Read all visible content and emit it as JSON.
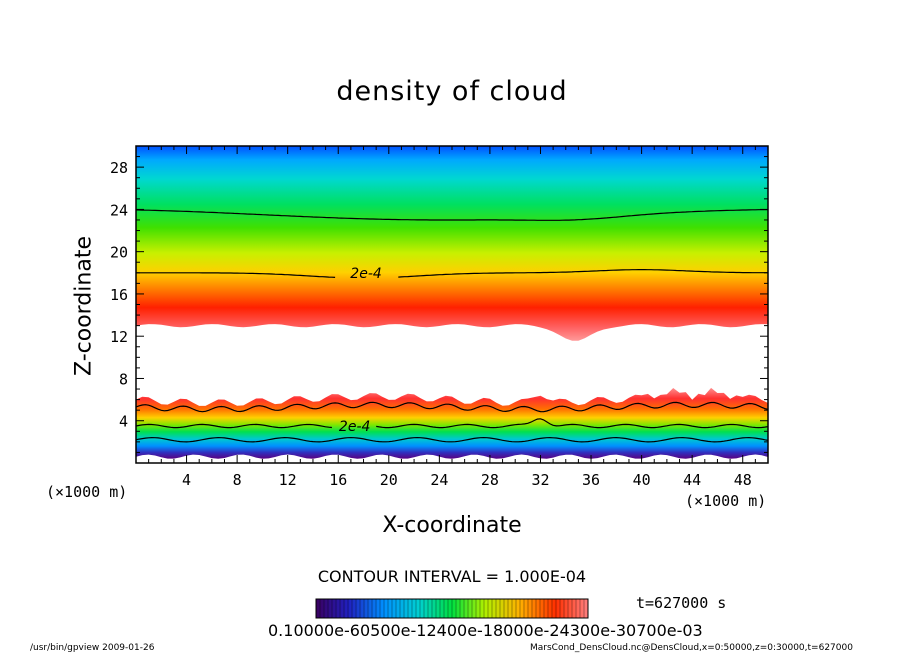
{
  "chart_data": {
    "type": "heatmap",
    "title": "density of cloud",
    "xlabel": "X-coordinate",
    "ylabel": "Z-coordinate",
    "x_unit_label": "(×1000 m)",
    "y_unit_label": "(×1000 m)",
    "xlim": [
      0,
      50
    ],
    "ylim": [
      0,
      30
    ],
    "x_ticks": [
      4,
      8,
      12,
      16,
      20,
      24,
      28,
      32,
      36,
      40,
      44,
      48
    ],
    "y_ticks": [
      4,
      8,
      12,
      16,
      20,
      24,
      28
    ],
    "contour_interval_text": "CONTOUR INTERVAL = 1.000E-04",
    "contour_label": "2e-4",
    "time_text": "t=627000 s",
    "colorbar_labels_text": "0.10000e-60500e-12400e-18000e-24300e-30700e-03",
    "colorbar_range": [
      0.0001,
      0.0003
    ],
    "layers": [
      {
        "name": "upper cloud",
        "z_bottom": 13,
        "z_peak": 15,
        "z_top": 30,
        "contour_2e4_z": 18
      },
      {
        "name": "lower cloud",
        "z_bottom": 0.6,
        "z_peak": 5,
        "z_top": 6,
        "contour_2e4_z": 3.5
      }
    ],
    "colormap": [
      "#4b006e",
      "#2020d0",
      "#00a0ff",
      "#00d8d8",
      "#00e040",
      "#a0f000",
      "#f0f000",
      "#ffa000",
      "#ff3000",
      "#ff8080"
    ]
  },
  "footer": {
    "left": "/usr/bin/gpview   2009-01-26",
    "right": "MarsCond_DensCloud.nc@DensCloud,x=0:50000,z=0:30000,t=627000"
  }
}
